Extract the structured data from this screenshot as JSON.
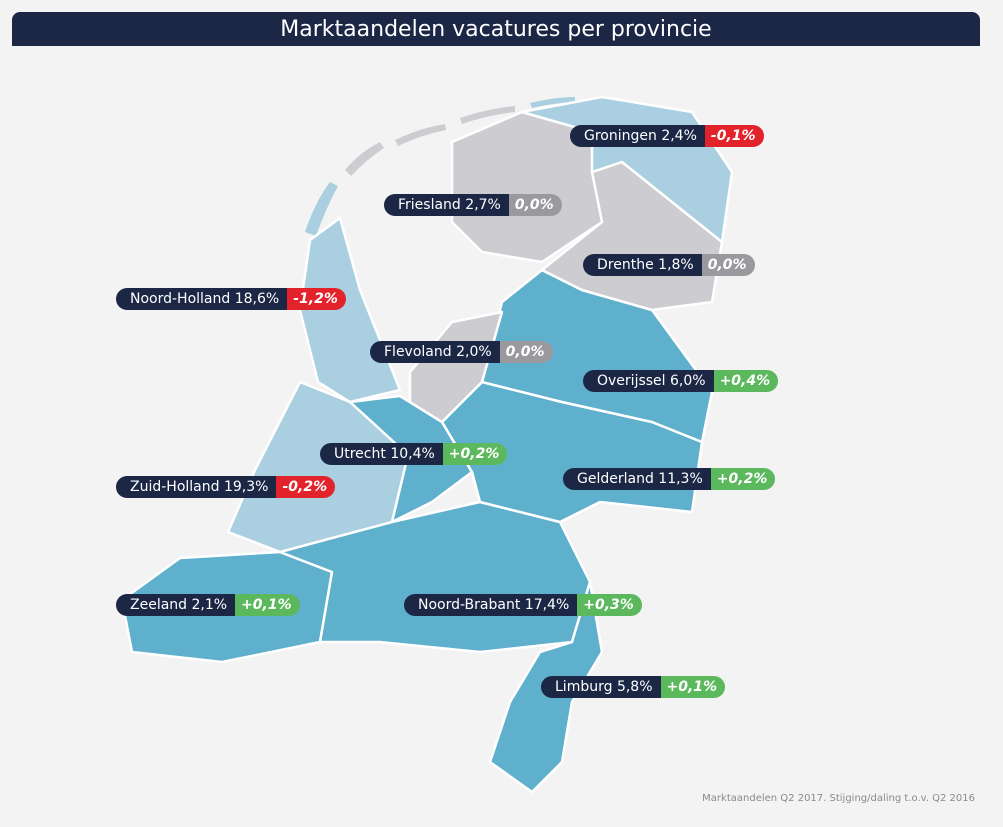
{
  "title": "Marktaandelen vacatures per provincie",
  "provinces": [
    {
      "name": "Groningen",
      "share": "2,4%",
      "change": "-0,1%",
      "color": "#e2232c"
    },
    {
      "name": "Friesland",
      "share": "2,7%",
      "change": "0,0%",
      "color": "#9a9a9e"
    },
    {
      "name": "Drenthe",
      "share": "1,8%",
      "change": "0,0%",
      "color": "#9a9a9e"
    },
    {
      "name": "Noord-Holland",
      "share": "18,6%",
      "change": "-1,2%",
      "color": "#e2232c"
    },
    {
      "name": "Flevoland",
      "share": "2,0%",
      "change": "0,0%",
      "color": "#9a9a9e"
    },
    {
      "name": "Overijssel",
      "share": "6,0%",
      "change": "+0,4%",
      "color": "#5cb85c"
    },
    {
      "name": "Utrecht",
      "share": "10,4%",
      "change": "+0,2%",
      "color": "#5cb85c"
    },
    {
      "name": "Gelderland",
      "share": "11,3%",
      "change": "+0,2%",
      "color": "#5cb85c"
    },
    {
      "name": "Zuid-Holland",
      "share": "19,3%",
      "change": "-0,2%",
      "color": "#e2232c"
    },
    {
      "name": "Zeeland",
      "share": "2,1%",
      "change": "+0,1%",
      "color": "#5cb85c"
    },
    {
      "name": "Noord-Brabant",
      "share": "17,4%",
      "change": "+0,3%",
      "color": "#5cb85c"
    },
    {
      "name": "Limburg",
      "share": "5,8%",
      "change": "+0,1%",
      "color": "#5cb85c"
    }
  ],
  "footnote": "Marktaandelen Q2 2017. Stijging/daling t.o.v. Q2  2016"
}
